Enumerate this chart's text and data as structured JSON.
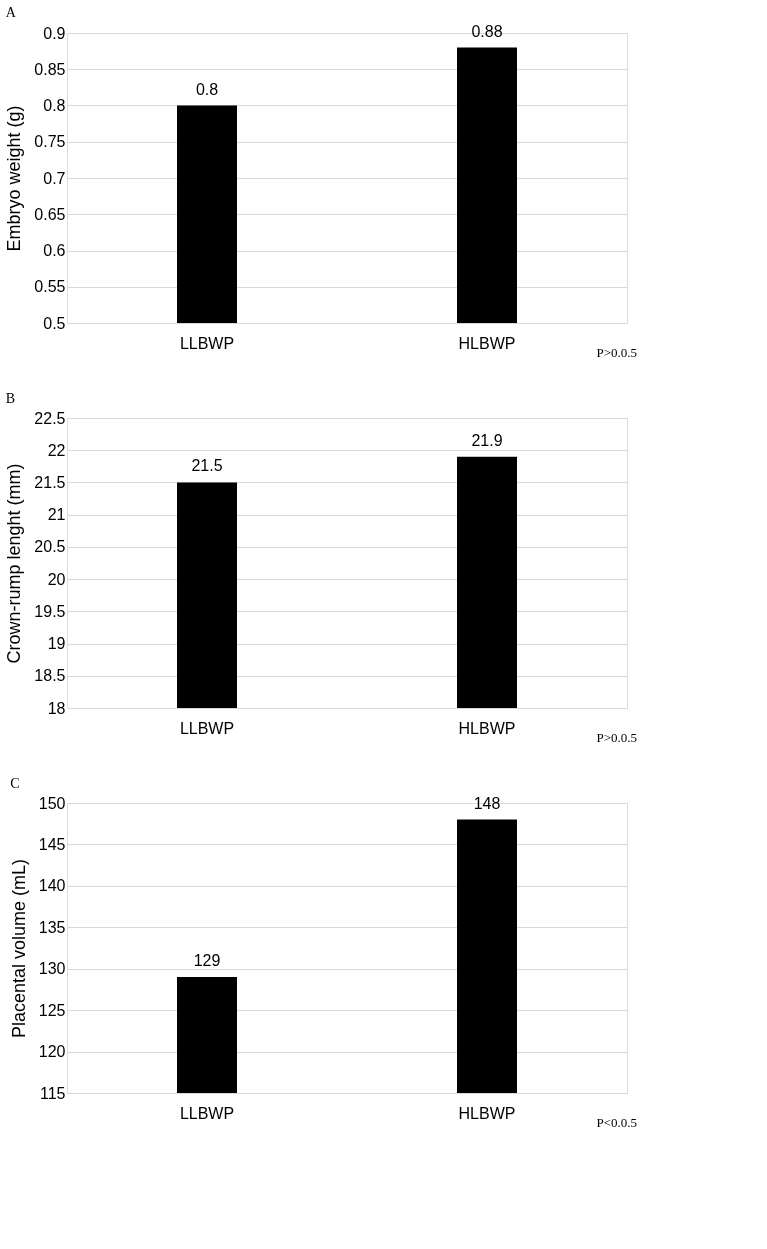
{
  "chart_data": [
    {
      "type": "bar",
      "title": "A",
      "categories": [
        "LLBWP",
        "HLBWP"
      ],
      "values": [
        0.8,
        0.88
      ],
      "color": "#000000",
      "ylabel": "Embryo weight (g)",
      "ylim": [
        0.5,
        0.9
      ],
      "yticks": [
        0.5,
        0.55,
        0.6,
        0.65,
        0.7,
        0.75,
        0.8,
        0.85,
        0.9
      ],
      "grid": "y",
      "data_labels": true,
      "annotations": [
        "P>0.0.5"
      ]
    },
    {
      "type": "bar",
      "title": "B",
      "categories": [
        "LLBWP",
        "HLBWP"
      ],
      "values": [
        21.5,
        21.9
      ],
      "color": "#000000",
      "ylabel": "Crown-rump lenght (mm)",
      "ylim": [
        18,
        22.5
      ],
      "yticks": [
        18,
        18.5,
        19,
        19.5,
        20,
        20.5,
        21,
        21.5,
        22,
        22.5
      ],
      "grid": "y",
      "data_labels": true,
      "annotations": [
        "P>0.0.5"
      ]
    },
    {
      "type": "bar",
      "title": "C",
      "categories": [
        "LLBWP",
        "HLBWP"
      ],
      "values": [
        129,
        148
      ],
      "color": "#000000",
      "ylabel": "Placental volume (mL)",
      "ylim": [
        115,
        150
      ],
      "yticks": [
        115,
        120,
        125,
        130,
        135,
        140,
        145,
        150
      ],
      "grid": "y",
      "data_labels": true,
      "annotations": [
        "P<0.0.5"
      ]
    }
  ]
}
